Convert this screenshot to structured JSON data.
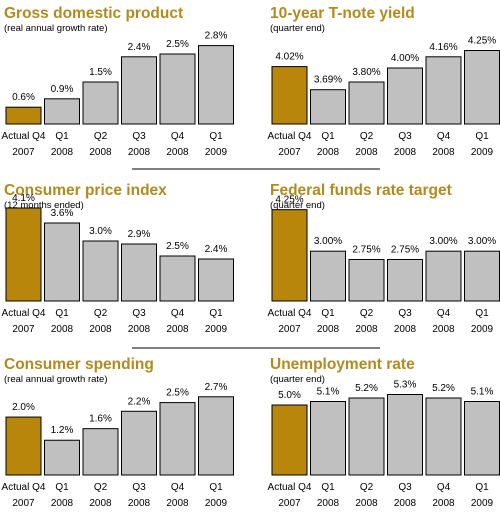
{
  "colors": {
    "title": "#b38a1e",
    "highlight_bar": "#b8860b",
    "bar": "#c0c0c0",
    "outline": "#000000",
    "text": "#000000",
    "divider": "#000000"
  },
  "chart_data": [
    {
      "type": "bar",
      "title": "Gross domestic product",
      "subtitle": "(real annual growth rate)",
      "categories": [
        [
          "Actual Q4",
          "2007"
        ],
        [
          "Q1",
          "2008"
        ],
        [
          "Q2",
          "2008"
        ],
        [
          "Q3",
          "2008"
        ],
        [
          "Q4",
          "2008"
        ],
        [
          "Q1",
          "2009"
        ]
      ],
      "values": [
        0.6,
        0.9,
        1.5,
        2.4,
        2.5,
        2.8
      ],
      "labels": [
        "0.6%",
        "0.9%",
        "1.5%",
        "2.4%",
        "2.5%",
        "2.8%"
      ],
      "highlight_index": 0,
      "ylim": [
        0,
        3.0
      ]
    },
    {
      "type": "bar",
      "title": "10-year T-note yield",
      "subtitle": "(quarter end)",
      "categories": [
        [
          "Actual Q4",
          "2007"
        ],
        [
          "Q1",
          "2008"
        ],
        [
          "Q2",
          "2008"
        ],
        [
          "Q3",
          "2008"
        ],
        [
          "Q4",
          "2008"
        ],
        [
          "Q1",
          "2009"
        ]
      ],
      "values": [
        4.02,
        3.69,
        3.8,
        4.0,
        4.16,
        4.25
      ],
      "labels": [
        "4.02%",
        "3.69%",
        "3.80%",
        "4.00%",
        "4.16%",
        "4.25%"
      ],
      "highlight_index": 0,
      "ylim": [
        3.2,
        4.4
      ]
    },
    {
      "type": "bar",
      "title": "Consumer price index",
      "subtitle": "(12 months ended)",
      "categories": [
        [
          "Actual Q4",
          "2007"
        ],
        [
          "Q1",
          "2008"
        ],
        [
          "Q2",
          "2008"
        ],
        [
          "Q3",
          "2008"
        ],
        [
          "Q4",
          "2008"
        ],
        [
          "Q1",
          "2009"
        ]
      ],
      "values": [
        4.1,
        3.6,
        3.0,
        2.9,
        2.5,
        2.4
      ],
      "labels": [
        "4.1%",
        "3.6%",
        "3.0%",
        "2.9%",
        "2.5%",
        "2.4%"
      ],
      "highlight_index": 0,
      "ylim": [
        1.0,
        4.1
      ]
    },
    {
      "type": "bar",
      "title": "Federal funds rate target",
      "subtitle": "(quarter end)",
      "categories": [
        [
          "Actual Q4",
          "2007"
        ],
        [
          "Q1",
          "2008"
        ],
        [
          "Q2",
          "2008"
        ],
        [
          "Q3",
          "2008"
        ],
        [
          "Q4",
          "2008"
        ],
        [
          "Q1",
          "2009"
        ]
      ],
      "values": [
        4.25,
        3.0,
        2.75,
        2.75,
        3.0,
        3.0
      ],
      "labels": [
        "4.25%",
        "3.00%",
        "2.75%",
        "2.75%",
        "3.00%",
        "3.00%"
      ],
      "highlight_index": 0,
      "ylim": [
        1.5,
        4.3
      ]
    },
    {
      "type": "bar",
      "title": "Consumer spending",
      "subtitle": "(real annual growth rate)",
      "categories": [
        [
          "Actual Q4",
          "2007"
        ],
        [
          "Q1",
          "2008"
        ],
        [
          "Q2",
          "2008"
        ],
        [
          "Q3",
          "2008"
        ],
        [
          "Q4",
          "2008"
        ],
        [
          "Q1",
          "2009"
        ]
      ],
      "values": [
        2.0,
        1.2,
        1.6,
        2.2,
        2.5,
        2.7
      ],
      "labels": [
        "2.0%",
        "1.2%",
        "1.6%",
        "2.2%",
        "2.5%",
        "2.7%"
      ],
      "highlight_index": 0,
      "ylim": [
        0,
        2.9
      ]
    },
    {
      "type": "bar",
      "title": "Unemployment rate",
      "subtitle": "(quarter end)",
      "categories": [
        [
          "Actual Q4",
          "2007"
        ],
        [
          "Q1",
          "2008"
        ],
        [
          "Q2",
          "2008"
        ],
        [
          "Q3",
          "2008"
        ],
        [
          "Q4",
          "2008"
        ],
        [
          "Q1",
          "2009"
        ]
      ],
      "values": [
        5.0,
        5.1,
        5.2,
        5.3,
        5.2,
        5.1
      ],
      "labels": [
        "5.0%",
        "5.1%",
        "5.2%",
        "5.3%",
        "5.2%",
        "5.1%"
      ],
      "highlight_index": 0,
      "ylim": [
        3.0,
        5.4
      ]
    }
  ]
}
